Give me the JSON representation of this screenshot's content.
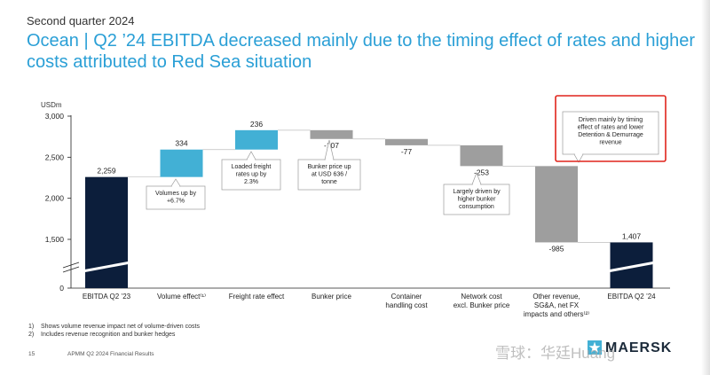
{
  "header": {
    "eyebrow": "Second quarter 2024",
    "title": "Ocean | Q2 ’24 EBITDA decreased mainly due to the timing effect of rates and higher costs attributed to Red Sea situation"
  },
  "chart_data": {
    "type": "waterfall",
    "ylabel": "USDm",
    "yticks": [
      0,
      1500,
      2000,
      2500,
      3000
    ],
    "ytick_labels": [
      "0",
      "1,500",
      "2,000",
      "2,500",
      "3,000"
    ],
    "axis_break": true,
    "grid": false,
    "categories": [
      "EBITDA Q2 ’23",
      "Volume effect⁽¹⁾",
      "Freight rate effect",
      "Bunker price",
      "Container handling cost",
      "Network cost excl. Bunker price",
      "Other revenue, SG&A, net FX impacts and others⁽²⁾",
      "EBITDA Q2 ’24"
    ],
    "steps": [
      {
        "kind": "total",
        "value": 2259,
        "label": "2,259"
      },
      {
        "kind": "delta",
        "value": 334,
        "label": "334"
      },
      {
        "kind": "delta",
        "value": 236,
        "label": "236"
      },
      {
        "kind": "delta",
        "value": -107,
        "label": "-107"
      },
      {
        "kind": "delta",
        "value": -77,
        "label": "-77"
      },
      {
        "kind": "delta",
        "value": -253,
        "label": "-253"
      },
      {
        "kind": "delta",
        "value": -985,
        "label": "-985"
      },
      {
        "kind": "total",
        "value": 1407,
        "label": "1,407"
      }
    ],
    "annotations": [
      {
        "step": 1,
        "text": "Volumes up by\n+6.7%"
      },
      {
        "step": 2,
        "text": "Loaded freight\nrates up by\n2.3%"
      },
      {
        "step": 3,
        "text": "Bunker price up\nat USD 636 /\ntonne"
      },
      {
        "step": 5,
        "text": "Largely driven by\nhigher bunker\nconsumption"
      },
      {
        "step": 6,
        "text": "Driven mainly by timing\neffect of rates and lower\nDetention & Demurrage\nrevenue",
        "highlight": true
      }
    ],
    "colors": {
      "total": "#0c1e3b",
      "increase": "#42b0d5",
      "decrease": "#9e9e9e",
      "highlight": "#e0241b"
    }
  },
  "footnotes": [
    {
      "num": "1)",
      "text": "Shows volume revenue impact net of volume-driven costs"
    },
    {
      "num": "2)",
      "text": "Includes revenue recognition and bunker hedges"
    }
  ],
  "footer": {
    "page": "15",
    "doc": "APMM Q2 2024 Financial Results"
  },
  "brand": {
    "name": "MAERSK"
  },
  "watermark": {
    "text": "雪球：华廷Huang"
  }
}
